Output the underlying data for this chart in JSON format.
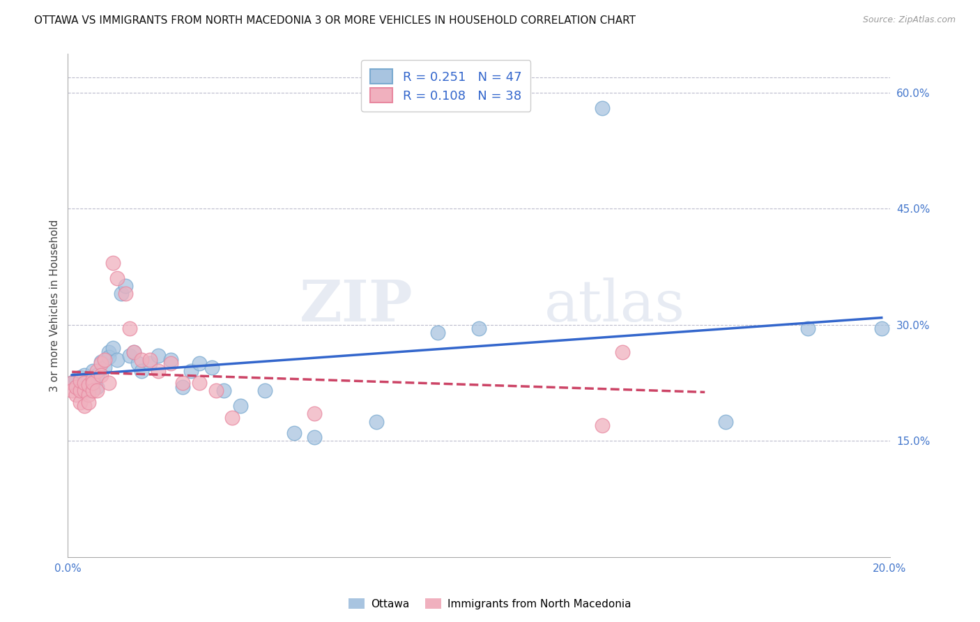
{
  "title": "OTTAWA VS IMMIGRANTS FROM NORTH MACEDONIA 3 OR MORE VEHICLES IN HOUSEHOLD CORRELATION CHART",
  "source": "Source: ZipAtlas.com",
  "ylabel": "3 or more Vehicles in Household",
  "xlim": [
    0.0,
    0.2
  ],
  "ylim": [
    0.0,
    0.65
  ],
  "xtick_positions": [
    0.0,
    0.04,
    0.08,
    0.12,
    0.16,
    0.2
  ],
  "xtick_labels": [
    "0.0%",
    "",
    "",
    "",
    "",
    "20.0%"
  ],
  "yticks_right": [
    0.15,
    0.3,
    0.45,
    0.6
  ],
  "ytick_right_labels": [
    "15.0%",
    "30.0%",
    "45.0%",
    "60.0%"
  ],
  "blue_color": "#a8c4e0",
  "pink_color": "#f0b0be",
  "blue_edge": "#7aaad0",
  "pink_edge": "#e888a0",
  "line_blue": "#3366cc",
  "line_pink": "#cc4466",
  "watermark": "ZIPatlas",
  "title_fontsize": 11,
  "source_fontsize": 9,
  "ottawa_x": [
    0.001,
    0.002,
    0.002,
    0.003,
    0.003,
    0.003,
    0.004,
    0.004,
    0.004,
    0.005,
    0.005,
    0.005,
    0.006,
    0.006,
    0.007,
    0.007,
    0.008,
    0.009,
    0.01,
    0.01,
    0.011,
    0.012,
    0.013,
    0.014,
    0.015,
    0.016,
    0.017,
    0.018,
    0.02,
    0.022,
    0.025,
    0.028,
    0.03,
    0.032,
    0.035,
    0.038,
    0.042,
    0.048,
    0.055,
    0.06,
    0.075,
    0.09,
    0.1,
    0.13,
    0.16,
    0.18,
    0.198
  ],
  "ottawa_y": [
    0.225,
    0.23,
    0.22,
    0.215,
    0.228,
    0.232,
    0.218,
    0.235,
    0.225,
    0.222,
    0.23,
    0.215,
    0.24,
    0.225,
    0.235,
    0.22,
    0.252,
    0.245,
    0.265,
    0.258,
    0.27,
    0.255,
    0.34,
    0.35,
    0.26,
    0.265,
    0.25,
    0.24,
    0.25,
    0.26,
    0.255,
    0.22,
    0.24,
    0.25,
    0.245,
    0.215,
    0.195,
    0.215,
    0.16,
    0.155,
    0.175,
    0.29,
    0.295,
    0.58,
    0.175,
    0.295,
    0.295
  ],
  "immig_x": [
    0.001,
    0.001,
    0.002,
    0.002,
    0.003,
    0.003,
    0.003,
    0.004,
    0.004,
    0.004,
    0.005,
    0.005,
    0.005,
    0.006,
    0.006,
    0.006,
    0.007,
    0.007,
    0.008,
    0.008,
    0.009,
    0.01,
    0.011,
    0.012,
    0.014,
    0.015,
    0.016,
    0.018,
    0.02,
    0.022,
    0.025,
    0.028,
    0.032,
    0.036,
    0.04,
    0.06,
    0.13,
    0.135
  ],
  "immig_y": [
    0.225,
    0.215,
    0.21,
    0.22,
    0.2,
    0.215,
    0.228,
    0.215,
    0.225,
    0.195,
    0.21,
    0.222,
    0.2,
    0.23,
    0.215,
    0.225,
    0.24,
    0.215,
    0.25,
    0.235,
    0.255,
    0.225,
    0.38,
    0.36,
    0.34,
    0.295,
    0.265,
    0.255,
    0.255,
    0.24,
    0.25,
    0.225,
    0.225,
    0.215,
    0.18,
    0.185,
    0.17,
    0.265
  ]
}
